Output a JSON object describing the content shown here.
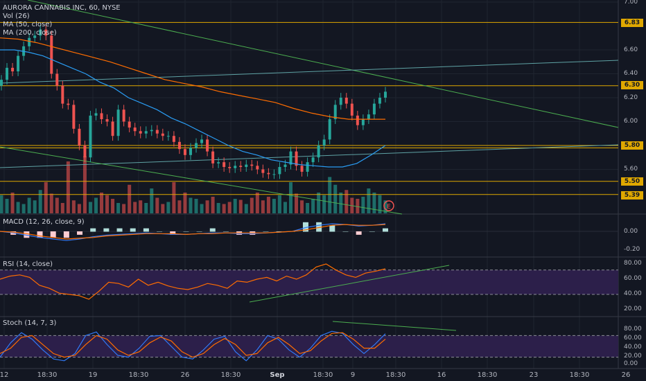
{
  "chart_data": [
    {
      "type": "candlestick",
      "title": "AURORA CANNABIS INC, 60, NYSE",
      "legend": [
        "Vol (26)",
        "MA (50, close)",
        "MA (200, close)"
      ],
      "y_ticks": [
        "7.00",
        "6.60",
        "6.40",
        "6.20",
        "6.00",
        "5.60"
      ],
      "ylim": [
        5.3,
        7.0
      ],
      "price_closes": [
        6.35,
        6.45,
        6.42,
        6.55,
        6.63,
        6.7,
        6.72,
        6.77,
        6.72,
        6.4,
        6.3,
        6.15,
        6.14,
        5.94,
        5.8,
        5.7,
        6.05,
        6.07,
        6.02,
        6.0,
        5.88,
        6.1,
        6.0,
        5.95,
        5.92,
        5.9,
        5.92,
        5.93,
        5.9,
        5.88,
        5.88,
        5.83,
        5.77,
        5.72,
        5.78,
        5.82,
        5.85,
        5.75,
        5.65,
        5.66,
        5.62,
        5.61,
        5.63,
        5.62,
        5.64,
        5.63,
        5.6,
        5.57,
        5.56,
        5.56,
        5.62,
        5.64,
        5.75,
        5.63,
        5.58,
        5.66,
        5.7,
        5.8,
        5.85,
        6.02,
        6.14,
        6.2,
        6.15,
        6.05,
        5.97,
        6.02,
        6.06,
        6.15,
        6.2,
        6.25
      ],
      "ma50": [
        6.6,
        6.6,
        6.58,
        6.55,
        6.5,
        6.45,
        6.4,
        6.33,
        6.28,
        6.2,
        6.15,
        6.1,
        6.03,
        5.98,
        5.92,
        5.86,
        5.8,
        5.75,
        5.72,
        5.68,
        5.66,
        5.64,
        5.63,
        5.62,
        5.62,
        5.65,
        5.72,
        5.8
      ],
      "ma200": [
        6.7,
        6.69,
        6.66,
        6.62,
        6.58,
        6.54,
        6.5,
        6.45,
        6.4,
        6.35,
        6.32,
        6.29,
        6.25,
        6.22,
        6.19,
        6.16,
        6.11,
        6.07,
        6.04,
        6.02,
        6.02,
        6.02
      ],
      "horizontal_levels": [
        "6.83",
        "6.30",
        "5.80",
        "5.50",
        "5.39"
      ],
      "volume": [
        35,
        28,
        40,
        22,
        18,
        30,
        25,
        45,
        60,
        38,
        30,
        20,
        100,
        25,
        18,
        110,
        22,
        30,
        40,
        35,
        28,
        20,
        18,
        55,
        22,
        25,
        20,
        48,
        30,
        18,
        22,
        60,
        25,
        40,
        30,
        28,
        18,
        25,
        32,
        20,
        18,
        22,
        28,
        26,
        18,
        30,
        40,
        25,
        32,
        28,
        35,
        22,
        60,
        38,
        25,
        20,
        28,
        40,
        35,
        70,
        55,
        40,
        45,
        30,
        28,
        32,
        48,
        40,
        35,
        25
      ],
      "annotation": "E"
    },
    {
      "type": "line",
      "title": "MACD (12, 26, close, 9)",
      "y_ticks": [
        "0.00",
        "-0.20"
      ],
      "series": [
        {
          "values": [
            0.0,
            -0.02,
            -0.05,
            -0.08,
            -0.1,
            -0.12,
            -0.1,
            -0.07,
            -0.05,
            -0.04,
            -0.03,
            -0.02,
            -0.03,
            -0.04,
            -0.04,
            -0.03,
            -0.02,
            -0.02,
            -0.03,
            -0.03,
            -0.02,
            -0.01,
            0.0,
            0.05,
            0.08,
            0.1,
            0.09,
            0.07,
            0.08,
            0.1
          ],
          "color": "#3179f5"
        },
        {
          "values": [
            0.0,
            -0.01,
            -0.03,
            -0.06,
            -0.08,
            -0.1,
            -0.09,
            -0.08,
            -0.06,
            -0.05,
            -0.04,
            -0.03,
            -0.03,
            -0.03,
            -0.04,
            -0.03,
            -0.03,
            -0.02,
            -0.02,
            -0.02,
            -0.02,
            -0.01,
            0.0,
            0.02,
            0.05,
            0.08,
            0.09,
            0.08,
            0.08,
            0.09
          ],
          "color": "#ff6d00"
        }
      ]
    },
    {
      "type": "line",
      "title": "RSI (14, close)",
      "y_ticks": [
        "80.00",
        "60.00",
        "40.00",
        "20.00"
      ],
      "ylim": [
        15,
        85
      ],
      "series": [
        {
          "values": [
            55,
            60,
            62,
            58,
            45,
            40,
            32,
            30,
            28,
            22,
            35,
            50,
            48,
            42,
            55,
            45,
            50,
            44,
            40,
            38,
            42,
            48,
            45,
            40,
            52,
            50,
            55,
            58,
            52,
            60,
            55,
            62,
            75,
            80,
            70,
            62,
            58,
            65,
            68,
            72
          ],
          "color": "#ff6d00"
        }
      ]
    },
    {
      "type": "line",
      "title": "Stoch (14, 7, 3)",
      "y_ticks": [
        "80.00",
        "60.00",
        "40.00",
        "20.00",
        "0.00"
      ],
      "ylim": [
        0,
        100
      ],
      "series": [
        {
          "values": [
            20,
            60,
            88,
            70,
            40,
            15,
            10,
            30,
            80,
            90,
            55,
            25,
            20,
            45,
            78,
            80,
            50,
            20,
            15,
            40,
            70,
            78,
            35,
            10,
            40,
            80,
            70,
            40,
            20,
            45,
            80,
            92,
            86,
            55,
            30,
            55,
            85
          ],
          "color": "#3179f5"
        },
        {
          "values": [
            30,
            45,
            75,
            80,
            55,
            30,
            20,
            25,
            55,
            80,
            70,
            40,
            25,
            35,
            60,
            76,
            65,
            35,
            20,
            30,
            55,
            72,
            55,
            25,
            30,
            60,
            75,
            55,
            30,
            38,
            65,
            86,
            88,
            70,
            45,
            45,
            70
          ],
          "color": "#ff6d00"
        }
      ]
    }
  ],
  "x_ticks": [
    "12",
    "18:30",
    "19",
    "18:30",
    "26",
    "18:30",
    "Sep",
    "18:30",
    "9",
    "18:30",
    "16",
    "18:30",
    "23",
    "18:30",
    "26"
  ],
  "x_tick_bold": "Sep"
}
